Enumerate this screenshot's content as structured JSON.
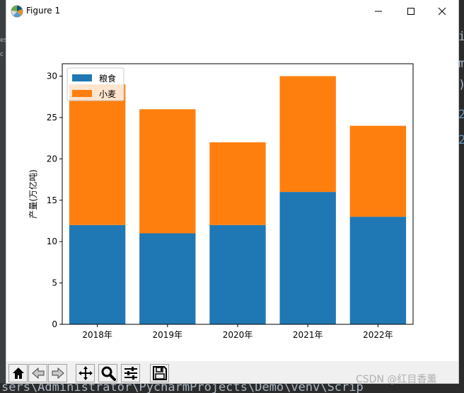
{
  "window": {
    "title": "Figure 1"
  },
  "chart_data": {
    "type": "bar",
    "stacked": true,
    "categories": [
      "2018年",
      "2019年",
      "2020年",
      "2021年",
      "2022年"
    ],
    "series": [
      {
        "name": "粮食",
        "color": "#1f77b4",
        "values": [
          12,
          11,
          12,
          16,
          13
        ]
      },
      {
        "name": "小麦",
        "color": "#ff7f0e",
        "values": [
          17,
          15,
          10,
          14,
          11
        ]
      }
    ],
    "ylabel": "产量(万亿吨)",
    "ylim": [
      0,
      31.5
    ],
    "yticks": [
      "0",
      "5",
      "10",
      "15",
      "20",
      "25",
      "30"
    ],
    "grid": false,
    "legend_position": "upper-left"
  },
  "toolbar": {
    "buttons": [
      {
        "name": "home-icon",
        "tooltip": "Home"
      },
      {
        "name": "back-arrow-icon",
        "tooltip": "Back"
      },
      {
        "name": "forward-arrow-icon",
        "tooltip": "Forward"
      },
      {
        "name": "pan-icon",
        "tooltip": "Pan"
      },
      {
        "name": "zoom-icon",
        "tooltip": "Zoom"
      },
      {
        "name": "subplots-config-icon",
        "tooltip": "Configure subplots"
      },
      {
        "name": "save-icon",
        "tooltip": "Save"
      }
    ]
  },
  "background_ide": {
    "left_fragments": [
      "es",
      "c"
    ],
    "right_chars": [
      "i",
      "m",
      ")",
      "2",
      "2"
    ],
    "bottom_text": "sers\\Administrator\\PycharmProjects\\Demo\\venv\\Scrip"
  },
  "watermark": "CSDN @红目香薰"
}
